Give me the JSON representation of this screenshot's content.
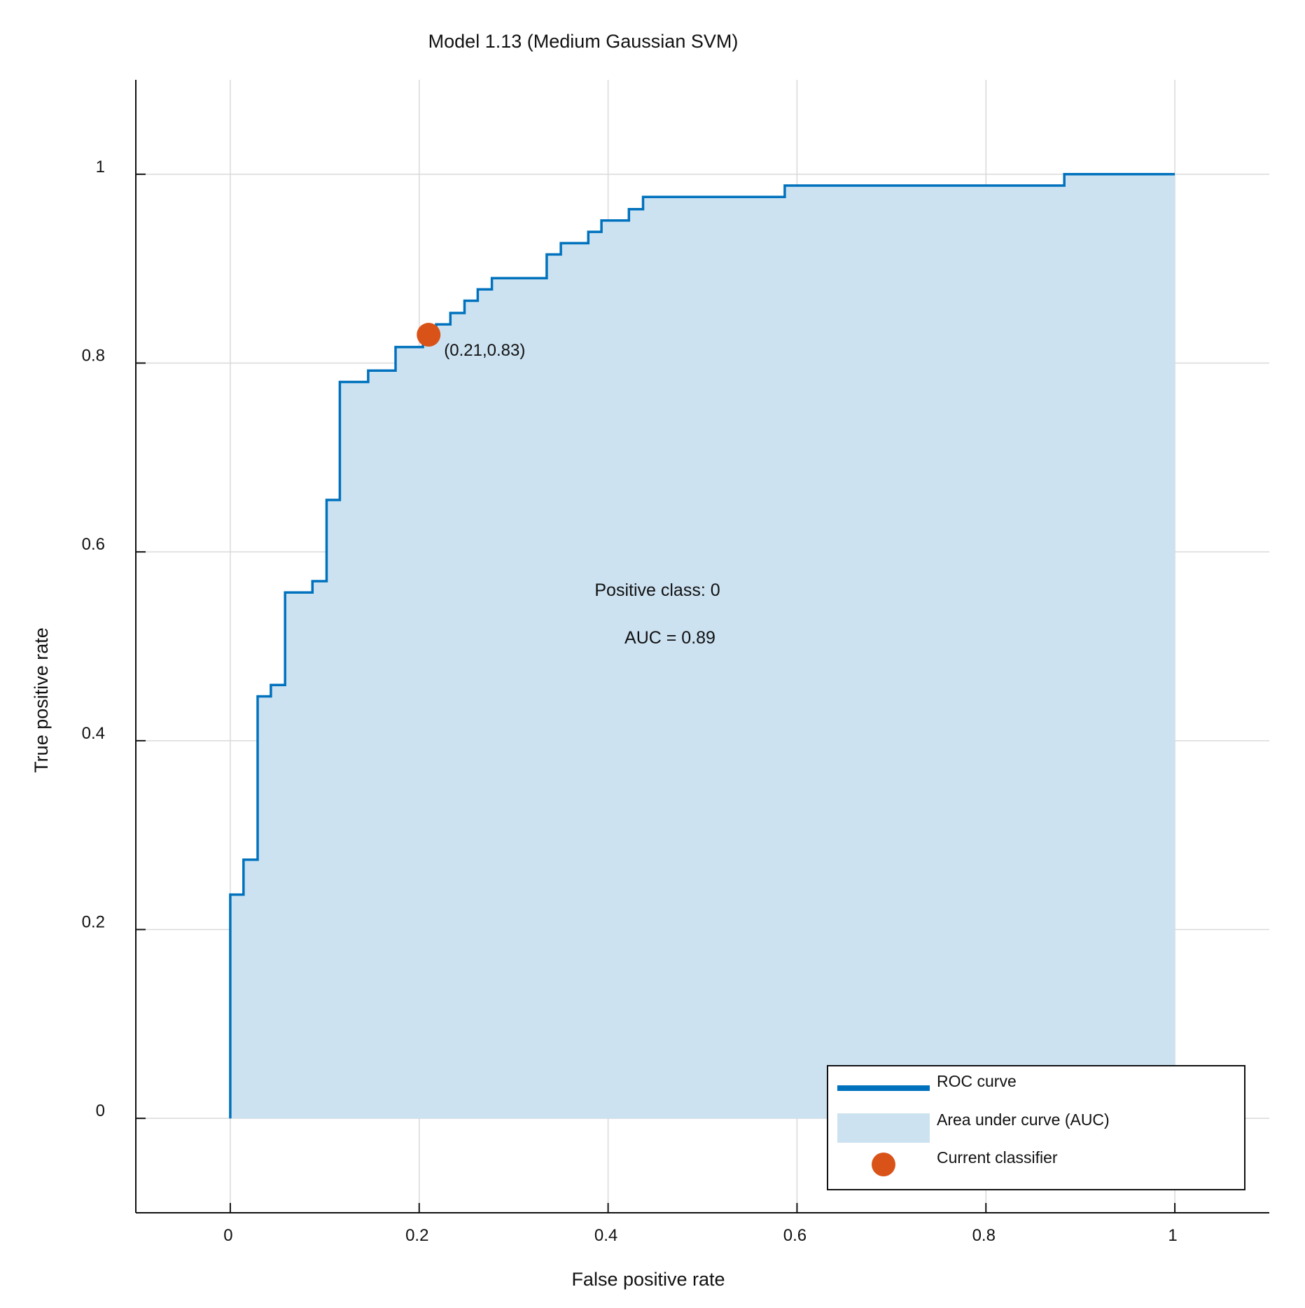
{
  "chart_data": {
    "type": "line",
    "title": "Model 1.13 (Medium Gaussian SVM)",
    "xlabel": "False positive rate",
    "ylabel": "True positive rate",
    "xlim": [
      -0.1,
      1.1
    ],
    "ylim": [
      -0.1,
      1.1
    ],
    "grid": true,
    "x_ticks": [
      0,
      0.2,
      0.4,
      0.6,
      0.8,
      1
    ],
    "x_tick_labels": [
      "0",
      "0.2",
      "0.4",
      "0.6",
      "0.8",
      "1"
    ],
    "y_ticks": [
      0,
      0.2,
      0.4,
      0.6,
      0.8,
      1
    ],
    "y_tick_labels": [
      "0",
      "0.2",
      "0.4",
      "0.6",
      "0.8",
      "1"
    ],
    "legend_position": "bottom-right",
    "legend": [
      {
        "label": "ROC curve",
        "kind": "line",
        "color": "#0072BD"
      },
      {
        "label": "Area under curve (AUC)",
        "kind": "patch",
        "color": "#CCE2F1"
      },
      {
        "label": "Current classifier",
        "kind": "marker",
        "color": "#D95319"
      }
    ],
    "annotations": {
      "positive_class": "Positive class: 0",
      "auc": "AUC = 0.89",
      "point_label": "(0.21,0.83)"
    },
    "current_classifier": {
      "x": 0.21,
      "y": 0.83
    },
    "series": [
      {
        "name": "ROC curve",
        "color": "#0072BD",
        "points": [
          [
            0.0,
            0.0
          ],
          [
            0.0,
            0.237
          ],
          [
            0.014,
            0.237
          ],
          [
            0.014,
            0.274
          ],
          [
            0.029,
            0.274
          ],
          [
            0.029,
            0.447
          ],
          [
            0.043,
            0.447
          ],
          [
            0.043,
            0.459
          ],
          [
            0.058,
            0.459
          ],
          [
            0.058,
            0.557
          ],
          [
            0.087,
            0.557
          ],
          [
            0.087,
            0.569
          ],
          [
            0.102,
            0.569
          ],
          [
            0.102,
            0.655
          ],
          [
            0.116,
            0.655
          ],
          [
            0.116,
            0.78
          ],
          [
            0.146,
            0.78
          ],
          [
            0.146,
            0.792
          ],
          [
            0.175,
            0.792
          ],
          [
            0.175,
            0.817
          ],
          [
            0.204,
            0.817
          ],
          [
            0.204,
            0.829
          ],
          [
            0.218,
            0.829
          ],
          [
            0.218,
            0.841
          ],
          [
            0.233,
            0.841
          ],
          [
            0.233,
            0.853
          ],
          [
            0.248,
            0.853
          ],
          [
            0.248,
            0.866
          ],
          [
            0.262,
            0.866
          ],
          [
            0.262,
            0.878
          ],
          [
            0.277,
            0.878
          ],
          [
            0.277,
            0.89
          ],
          [
            0.335,
            0.89
          ],
          [
            0.335,
            0.915
          ],
          [
            0.35,
            0.915
          ],
          [
            0.35,
            0.927
          ],
          [
            0.379,
            0.927
          ],
          [
            0.379,
            0.939
          ],
          [
            0.393,
            0.939
          ],
          [
            0.393,
            0.951
          ],
          [
            0.422,
            0.951
          ],
          [
            0.422,
            0.963
          ],
          [
            0.437,
            0.963
          ],
          [
            0.437,
            0.976
          ],
          [
            0.587,
            0.976
          ],
          [
            0.587,
            0.988
          ],
          [
            0.883,
            0.988
          ],
          [
            0.883,
            1.0
          ],
          [
            1.0,
            1.0
          ]
        ]
      }
    ]
  }
}
